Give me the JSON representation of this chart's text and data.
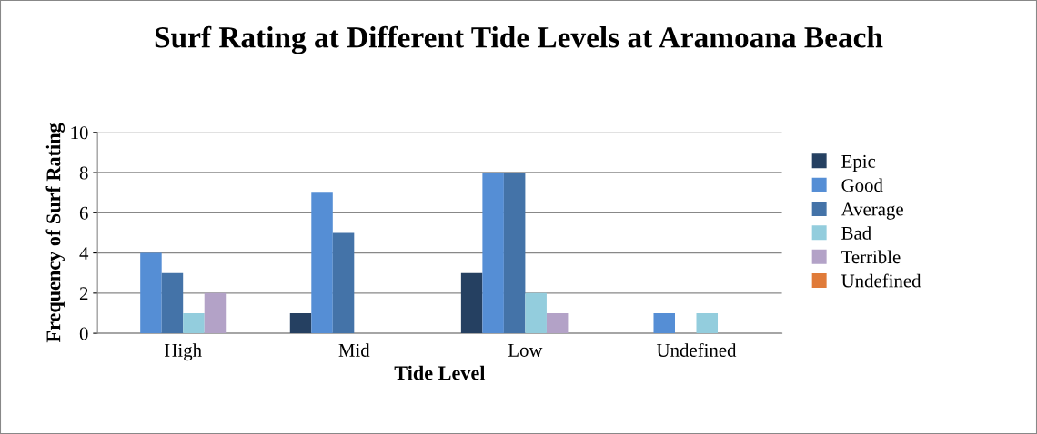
{
  "chart_data": {
    "type": "bar",
    "title": "Surf Rating at Different Tide Levels at Aramoana Beach",
    "xlabel": "Tide Level",
    "ylabel": "Frequency of Surf Rating",
    "categories": [
      "High",
      "Mid",
      "Low",
      "Undefined"
    ],
    "series": [
      {
        "name": "Epic",
        "color": "#254061",
        "values": [
          0,
          1,
          3,
          0
        ]
      },
      {
        "name": "Good",
        "color": "#558ed5",
        "values": [
          4,
          7,
          8,
          1
        ]
      },
      {
        "name": "Average",
        "color": "#4473a8",
        "values": [
          3,
          5,
          8,
          0
        ]
      },
      {
        "name": "Bad",
        "color": "#93cddd",
        "values": [
          1,
          0,
          2,
          1
        ]
      },
      {
        "name": "Terrible",
        "color": "#b3a2c7",
        "values": [
          2,
          0,
          1,
          0
        ]
      },
      {
        "name": "Undefined",
        "color": "#e07b39",
        "values": [
          0,
          0,
          0,
          0
        ]
      }
    ],
    "ylim": [
      0,
      10
    ],
    "yticks": [
      0,
      2,
      4,
      6,
      8,
      10
    ],
    "grid": "y",
    "legend": "right"
  }
}
